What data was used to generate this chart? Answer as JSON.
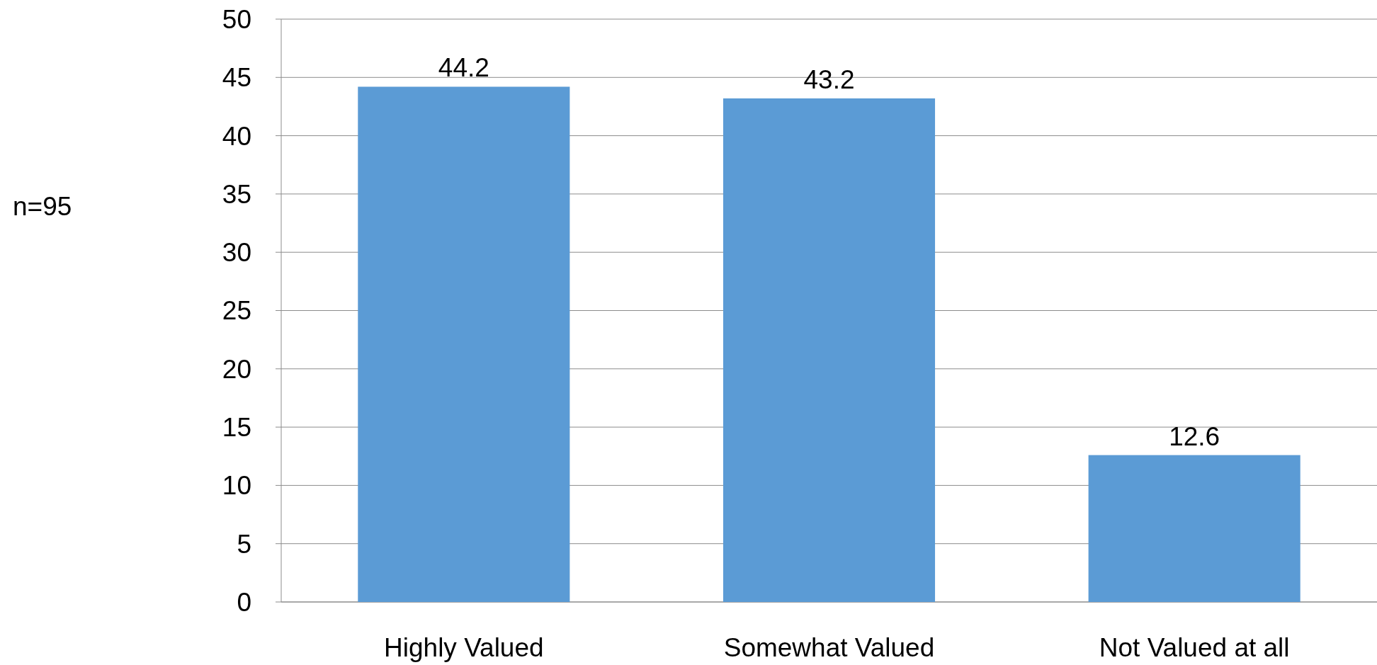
{
  "chart_data": {
    "type": "bar",
    "categories": [
      "Highly Valued",
      "Somewhat Valued",
      "Not Valued at all"
    ],
    "values": [
      44.2,
      43.2,
      12.6
    ],
    "color": "#5b9bd5",
    "ylim": [
      0,
      50
    ],
    "yticks": [
      0,
      5,
      10,
      15,
      20,
      25,
      30,
      35,
      40,
      45,
      50
    ],
    "grid": "y",
    "data_labels": true,
    "annotations": [
      "n=95"
    ]
  }
}
